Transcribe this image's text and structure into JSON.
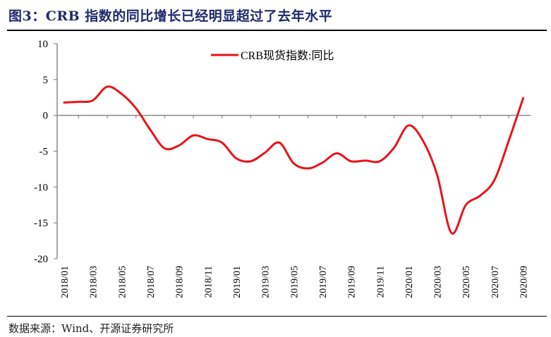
{
  "header": {
    "title": "图3：CRB 指数的同比增长已经明显超过了去年水平"
  },
  "footer": {
    "source": "数据来源：Wind、开源证券研究所"
  },
  "colors": {
    "series": "#e8141b",
    "axis": "#898989",
    "title": "#1f2a6b"
  },
  "chart_data": {
    "type": "line",
    "title": "CRB 指数的同比增长已经明显超过了去年水平",
    "xlabel": "",
    "ylabel": "",
    "ylim": [
      -20,
      10
    ],
    "yticks": [
      10,
      5,
      0,
      -5,
      -10,
      -15,
      -20
    ],
    "grid": false,
    "legend_position": "top-center",
    "xtick_labels": [
      "2018/01",
      "2018/03",
      "2018/05",
      "2018/07",
      "2018/09",
      "2018/11",
      "2019/01",
      "2019/03",
      "2019/05",
      "2019/07",
      "2019/09",
      "2019/11",
      "2020/01",
      "2020/03",
      "2020/05",
      "2020/07",
      "2020/09"
    ],
    "x": [
      "2018/01",
      "2018/02",
      "2018/03",
      "2018/04",
      "2018/05",
      "2018/06",
      "2018/07",
      "2018/08",
      "2018/09",
      "2018/10",
      "2018/11",
      "2018/12",
      "2019/01",
      "2019/02",
      "2019/03",
      "2019/04",
      "2019/05",
      "2019/06",
      "2019/07",
      "2019/08",
      "2019/09",
      "2019/10",
      "2019/11",
      "2019/12",
      "2020/01",
      "2020/02",
      "2020/03",
      "2020/04",
      "2020/05",
      "2020/06",
      "2020/07",
      "2020/08",
      "2020/09"
    ],
    "series": [
      {
        "name": "CRB现货指数:同比",
        "values": [
          1.8,
          1.9,
          2.1,
          4.0,
          3.0,
          1.0,
          -2.0,
          -4.6,
          -4.2,
          -2.8,
          -3.3,
          -3.8,
          -6.0,
          -6.4,
          -5.2,
          -3.8,
          -6.7,
          -7.4,
          -6.6,
          -5.3,
          -6.4,
          -6.3,
          -6.4,
          -4.5,
          -1.4,
          -3.5,
          -8.3,
          -16.4,
          -12.5,
          -11.2,
          -9.0,
          -3.5,
          2.4
        ]
      }
    ]
  }
}
